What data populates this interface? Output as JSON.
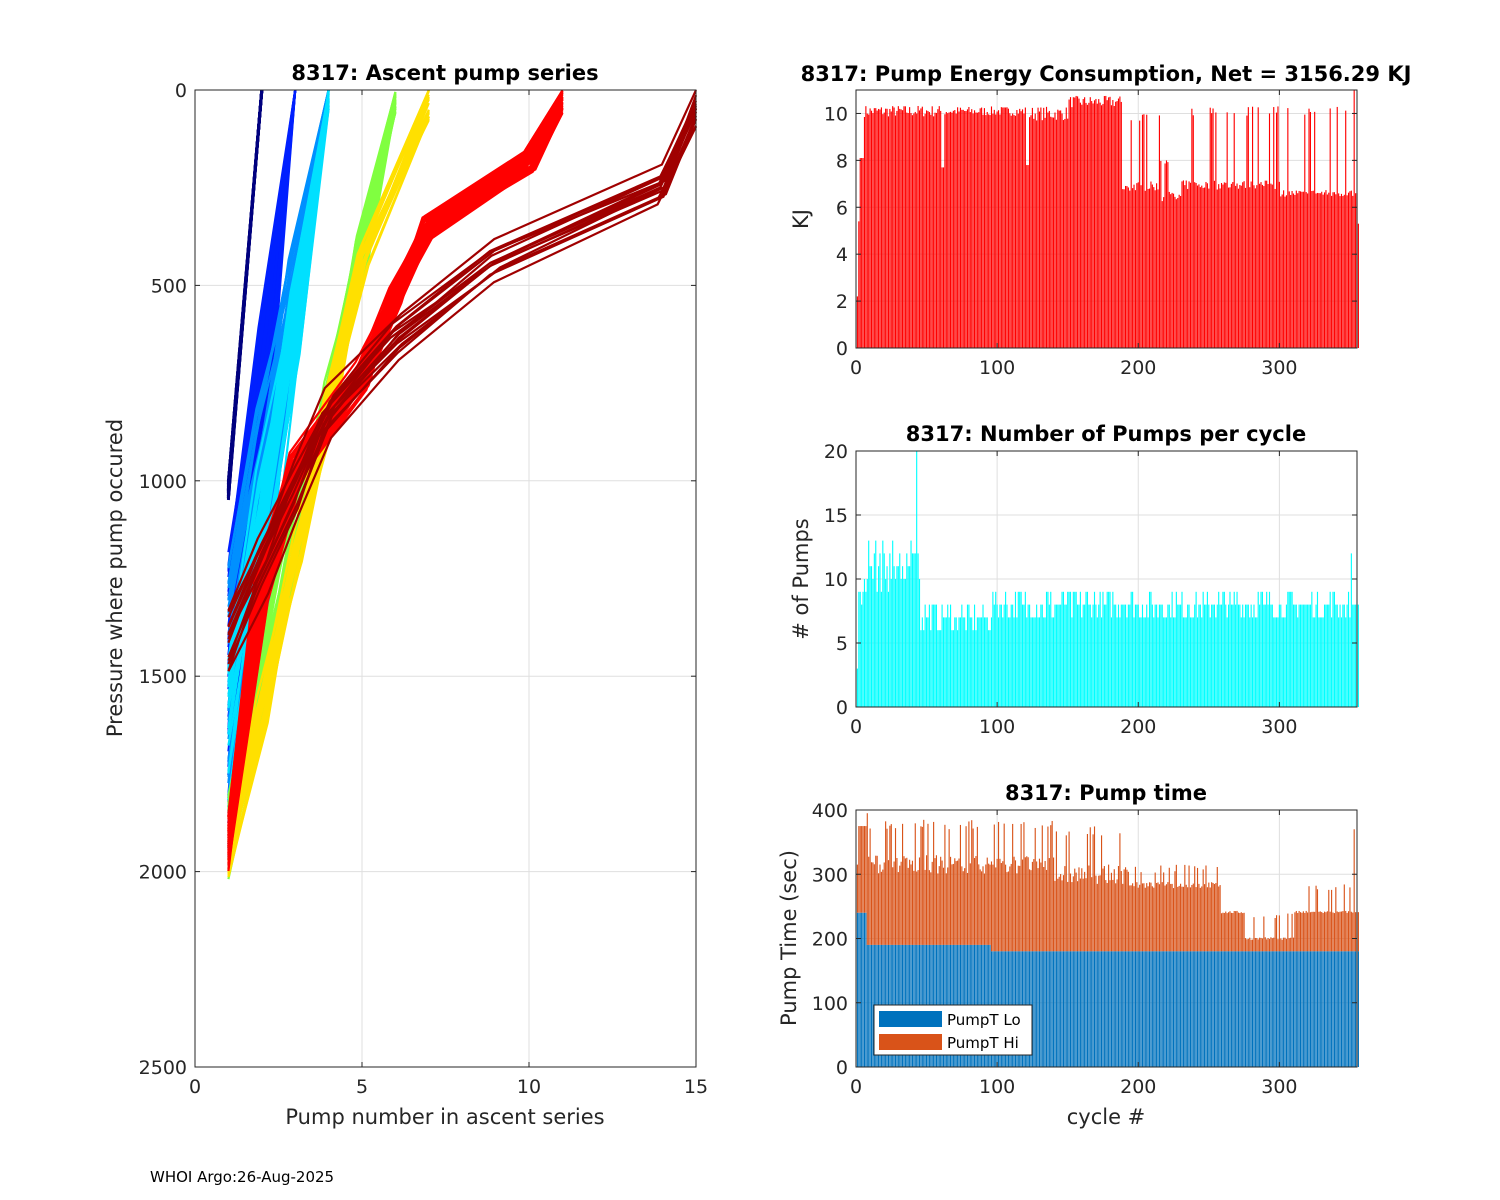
{
  "footer": "WHOI Argo:26-Aug-2025",
  "chart_data": [
    {
      "id": "ascent",
      "type": "line",
      "title": "8317: Ascent pump series",
      "xlabel": "Pump number in ascent series",
      "ylabel": "Pressure where pump occured",
      "xlim": [
        0,
        15
      ],
      "ylim": [
        0,
        2500
      ],
      "y_reversed": true,
      "xticks": [
        0,
        5,
        10,
        15
      ],
      "yticks": [
        0,
        500,
        1000,
        1500,
        2000,
        2500
      ],
      "grid": true,
      "colormap": "jet (by cycle)",
      "series_groups": [
        {
          "name": "early cycles (dark blue)",
          "color": "#00007f",
          "style": "dotted",
          "count": 40,
          "x": [
            1,
            2
          ],
          "p_start": [
            1000,
            1050
          ],
          "p_end": [
            0,
            0
          ]
        },
        {
          "name": "blue cycles",
          "color": "#0020ff",
          "style": "solid",
          "count": 40,
          "x": [
            1,
            2,
            3
          ],
          "p_start": [
            1150,
            1950
          ],
          "p_mid": [
            0,
            150
          ],
          "p_end": [
            0,
            0
          ]
        },
        {
          "name": "light blue cycles",
          "color": "#0090ff",
          "style": "solid",
          "count": 40,
          "x": [
            1,
            2,
            3,
            4
          ],
          "p_start": [
            1200,
            2000
          ],
          "p_end": [
            0,
            0
          ]
        },
        {
          "name": "cyan cycles",
          "color": "#00e0ff",
          "style": "solid",
          "count": 30,
          "x": [
            1,
            2,
            3,
            4
          ],
          "p_start": [
            1400,
            2000
          ],
          "p_end": [
            0,
            50
          ]
        },
        {
          "name": "green cycles",
          "color": "#80ff40",
          "style": "solid",
          "count": 30,
          "x": [
            1,
            2,
            3,
            4,
            5,
            6
          ],
          "p_start": [
            1800,
            2020
          ],
          "p_end": [
            0,
            60
          ]
        },
        {
          "name": "yellow cycles",
          "color": "#ffe000",
          "style": "solid",
          "count": 20,
          "x": [
            1,
            2,
            3,
            4,
            5,
            7
          ],
          "p_start": [
            1900,
            2020
          ],
          "p_end": [
            0,
            80
          ]
        },
        {
          "name": "red cycles",
          "color": "#ff0000",
          "style": "solid",
          "count": 60,
          "x": [
            1,
            2,
            3,
            5,
            6,
            7,
            10,
            11
          ],
          "p_start": [
            1850,
            2000
          ],
          "p_mid": [
            250,
            1700
          ],
          "p_end": [
            0,
            60
          ]
        },
        {
          "name": "dark red cycles",
          "color": "#a00000",
          "style": "solid",
          "count": 15,
          "x": [
            1,
            2,
            3,
            4,
            6,
            9,
            14,
            15
          ],
          "p_start": [
            1300,
            1520
          ],
          "p_end": [
            0,
            100
          ]
        }
      ]
    },
    {
      "id": "energy",
      "type": "bar",
      "title": "8317: Pump Energy Consumption,  Net = 3156.29 KJ",
      "xlabel": "",
      "ylabel": "KJ",
      "xlim": [
        0,
        355
      ],
      "ylim": [
        0,
        11
      ],
      "xticks": [
        0,
        100,
        200,
        300
      ],
      "yticks": [
        0,
        2,
        4,
        6,
        8,
        10
      ],
      "grid": true,
      "color": "#ff0000",
      "net_kj": 3156.29,
      "segments": [
        {
          "cycles": [
            1,
            1
          ],
          "value": 2.2
        },
        {
          "cycles": [
            2,
            2
          ],
          "value": 5.4
        },
        {
          "cycles": [
            3,
            5
          ],
          "value": 8.1
        },
        {
          "cycles": [
            6,
            60
          ],
          "value": 10.1,
          "spread": 0.25
        },
        {
          "cycles": [
            61,
            62
          ],
          "value": 7.7
        },
        {
          "cycles": [
            63,
            120
          ],
          "value": 10.1,
          "spread": 0.2
        },
        {
          "cycles": [
            121,
            122
          ],
          "value": 7.8
        },
        {
          "cycles": [
            123,
            150
          ],
          "value": 10.0,
          "spread": 0.3
        },
        {
          "cycles": [
            151,
            188
          ],
          "value": 10.5,
          "spread": 0.25
        },
        {
          "cycles": [
            189,
            215
          ],
          "value": 6.9,
          "spread": 0.2,
          "spikes": 10.0
        },
        {
          "cycles": [
            216,
            230
          ],
          "value": 6.4,
          "spread": 0.3,
          "spikes": 8.0
        },
        {
          "cycles": [
            231,
            300
          ],
          "value": 6.95,
          "spread": 0.2,
          "spikes": 10.3
        },
        {
          "cycles": [
            301,
            352
          ],
          "value": 6.6,
          "spread": 0.15,
          "spikes": 10.3
        },
        {
          "cycles": [
            353,
            353
          ],
          "value": 11.0
        },
        {
          "cycles": [
            354,
            355
          ],
          "value": 6.6
        },
        {
          "cycles": [
            356,
            356
          ],
          "value": 5.3
        }
      ]
    },
    {
      "id": "npumps",
      "type": "bar",
      "title": "8317: Number of Pumps per cycle",
      "xlabel": "",
      "ylabel": "# of Pumps",
      "xlim": [
        0,
        355
      ],
      "ylim": [
        0,
        20
      ],
      "xticks": [
        0,
        100,
        200,
        300
      ],
      "yticks": [
        0,
        5,
        10,
        15,
        20
      ],
      "grid": true,
      "color": "#00ffff",
      "segments": [
        {
          "cycles": [
            1,
            1
          ],
          "value": 3
        },
        {
          "cycles": [
            2,
            5
          ],
          "value": 8,
          "spread": 1.5
        },
        {
          "cycles": [
            6,
            45
          ],
          "value": 11,
          "spread": 2,
          "max": 20
        },
        {
          "cycles": [
            46,
            95
          ],
          "value": 7,
          "spread": 1
        },
        {
          "cycles": [
            96,
            230
          ],
          "value": 8,
          "spread": 1.2
        },
        {
          "cycles": [
            231,
            300
          ],
          "value": 8,
          "spread": 1
        },
        {
          "cycles": [
            301,
            350
          ],
          "value": 8,
          "spread": 1
        },
        {
          "cycles": [
            351,
            351
          ],
          "value": 12
        },
        {
          "cycles": [
            352,
            356
          ],
          "value": 8
        }
      ]
    },
    {
      "id": "pumptime",
      "type": "bar",
      "stacked": true,
      "title": "8317: Pump time",
      "xlabel": "cycle #",
      "ylabel": "Pump Time (sec)",
      "xlim": [
        0,
        355
      ],
      "ylim": [
        0,
        400
      ],
      "xticks": [
        0,
        100,
        200,
        300
      ],
      "yticks": [
        0,
        100,
        200,
        300,
        400
      ],
      "grid": true,
      "legend": {
        "placement": "bottom-left",
        "entries": [
          {
            "label": "PumpT Lo",
            "color": "#0072bd"
          },
          {
            "label": "PumpT Hi",
            "color": "#d95319"
          }
        ]
      },
      "series": [
        {
          "name": "PumpT Lo",
          "color": "#0072bd",
          "segments": [
            {
              "cycles": [
                1,
                7
              ],
              "value": 240
            },
            {
              "cycles": [
                8,
                95
              ],
              "value": 190
            },
            {
              "cycles": [
                96,
                356
              ],
              "value": 180
            }
          ]
        },
        {
          "name": "PumpT Hi",
          "color": "#d95319",
          "total_segments": [
            {
              "cycles": [
                1,
                1
              ],
              "total": 315
            },
            {
              "cycles": [
                2,
                7
              ],
              "total": 375
            },
            {
              "cycles": [
                8,
                8
              ],
              "total": 395
            },
            {
              "cycles": [
                9,
                140
              ],
              "total": 315,
              "spread": 15,
              "spikes": 385
            },
            {
              "cycles": [
                141,
                190
              ],
              "total": 300,
              "spread": 15,
              "spikes": 375
            },
            {
              "cycles": [
                191,
                258
              ],
              "total": 283,
              "spread": 5,
              "spikes": 315
            },
            {
              "cycles": [
                259,
                275
              ],
              "total": 241,
              "spread": 2
            },
            {
              "cycles": [
                276,
                310
              ],
              "total": 200,
              "spread": 2,
              "spikes": 241
            },
            {
              "cycles": [
                311,
                352
              ],
              "total": 241,
              "spread": 2,
              "spikes": 285
            },
            {
              "cycles": [
                353,
                353
              ],
              "total": 370
            },
            {
              "cycles": [
                354,
                356
              ],
              "total": 241
            }
          ]
        }
      ]
    }
  ]
}
